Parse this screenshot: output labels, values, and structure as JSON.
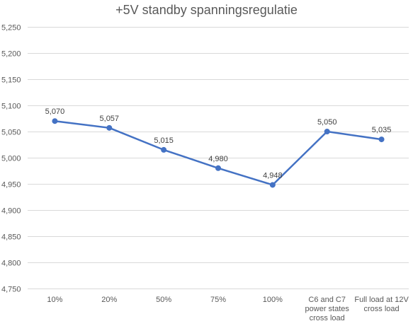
{
  "chart_data": {
    "type": "line",
    "title": "+5V standby spanningsregulatie",
    "xlabel": "",
    "ylabel": "",
    "categories": [
      "10%",
      "20%",
      "50%",
      "75%",
      "100%",
      "C6 and C7 power states cross load",
      "Full load at 12V cross load"
    ],
    "category_tick_lines": [
      [
        "10%"
      ],
      [
        "20%"
      ],
      [
        "50%"
      ],
      [
        "75%"
      ],
      [
        "100%"
      ],
      [
        "C6 and C7",
        "power states",
        "cross load"
      ],
      [
        "Full load at 12V",
        "cross load"
      ]
    ],
    "series": [
      {
        "values": [
          5.07,
          5.057,
          5.015,
          4.98,
          4.948,
          5.05,
          5.035
        ],
        "labels": [
          "5,070",
          "5,057",
          "5,015",
          "4,980",
          "4,948",
          "5,050",
          "5,035"
        ]
      }
    ],
    "y_ticks": [
      4.75,
      4.8,
      4.85,
      4.9,
      4.95,
      5.0,
      5.05,
      5.1,
      5.15,
      5.2,
      5.25
    ],
    "y_tick_labels": [
      "4,750",
      "4,800",
      "4,850",
      "4,900",
      "4,950",
      "5,000",
      "5,050",
      "5,100",
      "5,150",
      "5,200",
      "5,250"
    ],
    "ylim": [
      4.75,
      5.25
    ],
    "grid": true,
    "legend": "none",
    "colors": {
      "line": "#4472C4",
      "grid": "#D9D9D9",
      "text": "#595959"
    }
  }
}
